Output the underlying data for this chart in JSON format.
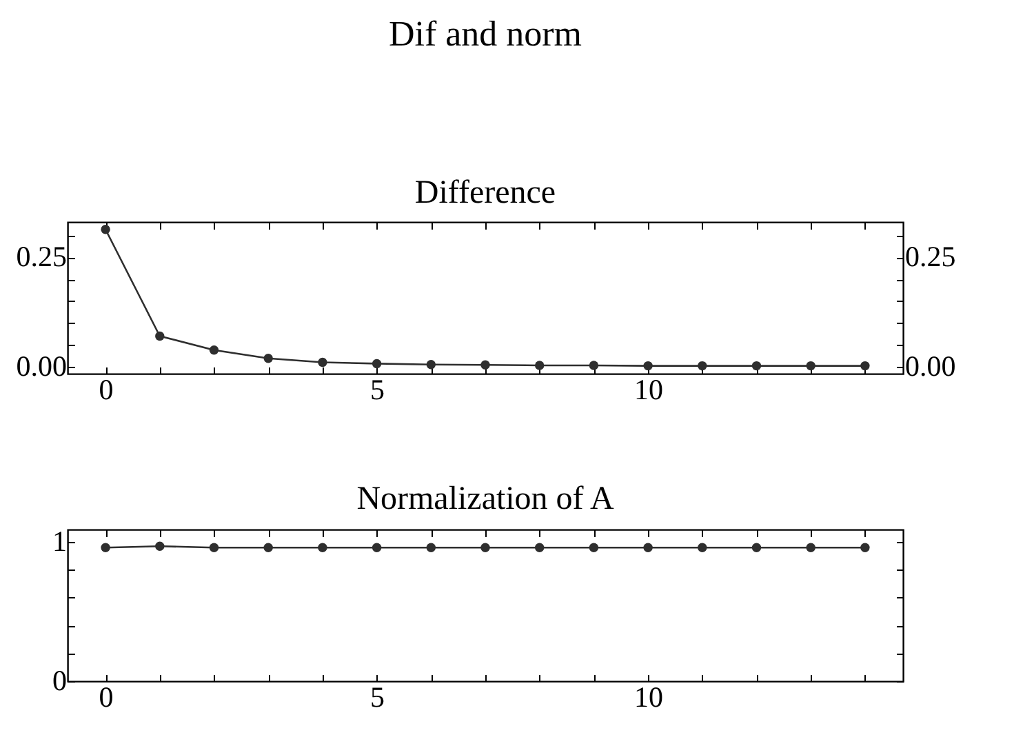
{
  "chart_data": [
    {
      "type": "line",
      "title": "Dif and norm",
      "subtitle": "Difference",
      "x": [
        0,
        1,
        2,
        3,
        4,
        5,
        6,
        7,
        8,
        9,
        10,
        11,
        12,
        13,
        14
      ],
      "series": [
        {
          "color": "#2e2e2e",
          "values": [
            0.314,
            0.07,
            0.038,
            0.019,
            0.01,
            0.007,
            0.005,
            0.004,
            0.003,
            0.003,
            0.002,
            0.002,
            0.002,
            0.002,
            0.002
          ]
        }
      ],
      "xlim": [
        -0.7,
        14.7
      ],
      "xticks": [
        0,
        {
          "value": 1,
          "label": null
        },
        {
          "value": 2,
          "label": null
        },
        {
          "value": 3,
          "label": null
        },
        {
          "value": 4,
          "label": null
        },
        5,
        {
          "value": 6,
          "label": null
        },
        {
          "value": 7,
          "label": null
        },
        {
          "value": 8,
          "label": null
        },
        {
          "value": 9,
          "label": null
        },
        10,
        {
          "value": 11,
          "label": null
        },
        {
          "value": 12,
          "label": null
        },
        {
          "value": 13,
          "label": null
        },
        {
          "value": 14,
          "label": null
        }
      ],
      "ylim": [
        -0.016,
        0.331
      ],
      "yticks": [
        {
          "value": 0,
          "label": "0.00"
        },
        {
          "value": 0.05,
          "label": null
        },
        {
          "value": 0.1,
          "label": null
        },
        {
          "value": 0.15,
          "label": null
        },
        {
          "value": 0.2,
          "label": null
        },
        {
          "value": 0.25,
          "label": "0.25"
        },
        {
          "value": 0.3,
          "label": null
        }
      ],
      "y2lim": [
        -0.016,
        0.331
      ],
      "y2ticks": [
        {
          "value": 0,
          "label": "0.00"
        },
        {
          "value": 0.05,
          "label": null
        },
        {
          "value": 0.1,
          "label": null
        },
        {
          "value": 0.15,
          "label": null
        },
        {
          "value": 0.2,
          "label": null
        },
        {
          "value": 0.25,
          "label": "0.25"
        },
        {
          "value": 0.3,
          "label": null
        }
      ],
      "marker": "circle",
      "line_style": "solid",
      "grid": false
    },
    {
      "type": "line",
      "subtitle": "Normalization of A",
      "x": [
        0,
        1,
        2,
        3,
        4,
        5,
        6,
        7,
        8,
        9,
        10,
        11,
        12,
        13,
        14
      ],
      "series": [
        {
          "color": "#2e2e2e",
          "values": [
            0.96,
            0.97,
            0.96,
            0.96,
            0.96,
            0.96,
            0.96,
            0.96,
            0.96,
            0.96,
            0.96,
            0.96,
            0.96,
            0.96,
            0.96
          ]
        }
      ],
      "xlim": [
        -0.7,
        14.7
      ],
      "xticks": [
        0,
        {
          "value": 1,
          "label": null
        },
        {
          "value": 2,
          "label": null
        },
        {
          "value": 3,
          "label": null
        },
        {
          "value": 4,
          "label": null
        },
        5,
        {
          "value": 6,
          "label": null
        },
        {
          "value": 7,
          "label": null
        },
        {
          "value": 8,
          "label": null
        },
        {
          "value": 9,
          "label": null
        },
        10,
        {
          "value": 11,
          "label": null
        },
        {
          "value": 12,
          "label": null
        },
        {
          "value": 13,
          "label": null
        },
        {
          "value": 14,
          "label": null
        }
      ],
      "ylim": [
        0,
        1.09
      ],
      "yticks": [
        0,
        {
          "value": 0.2,
          "label": null
        },
        {
          "value": 0.4,
          "label": null
        },
        {
          "value": 0.6,
          "label": null
        },
        {
          "value": 0.8,
          "label": null
        },
        1
      ],
      "marker": "circle",
      "line_style": "solid",
      "grid": false
    }
  ]
}
